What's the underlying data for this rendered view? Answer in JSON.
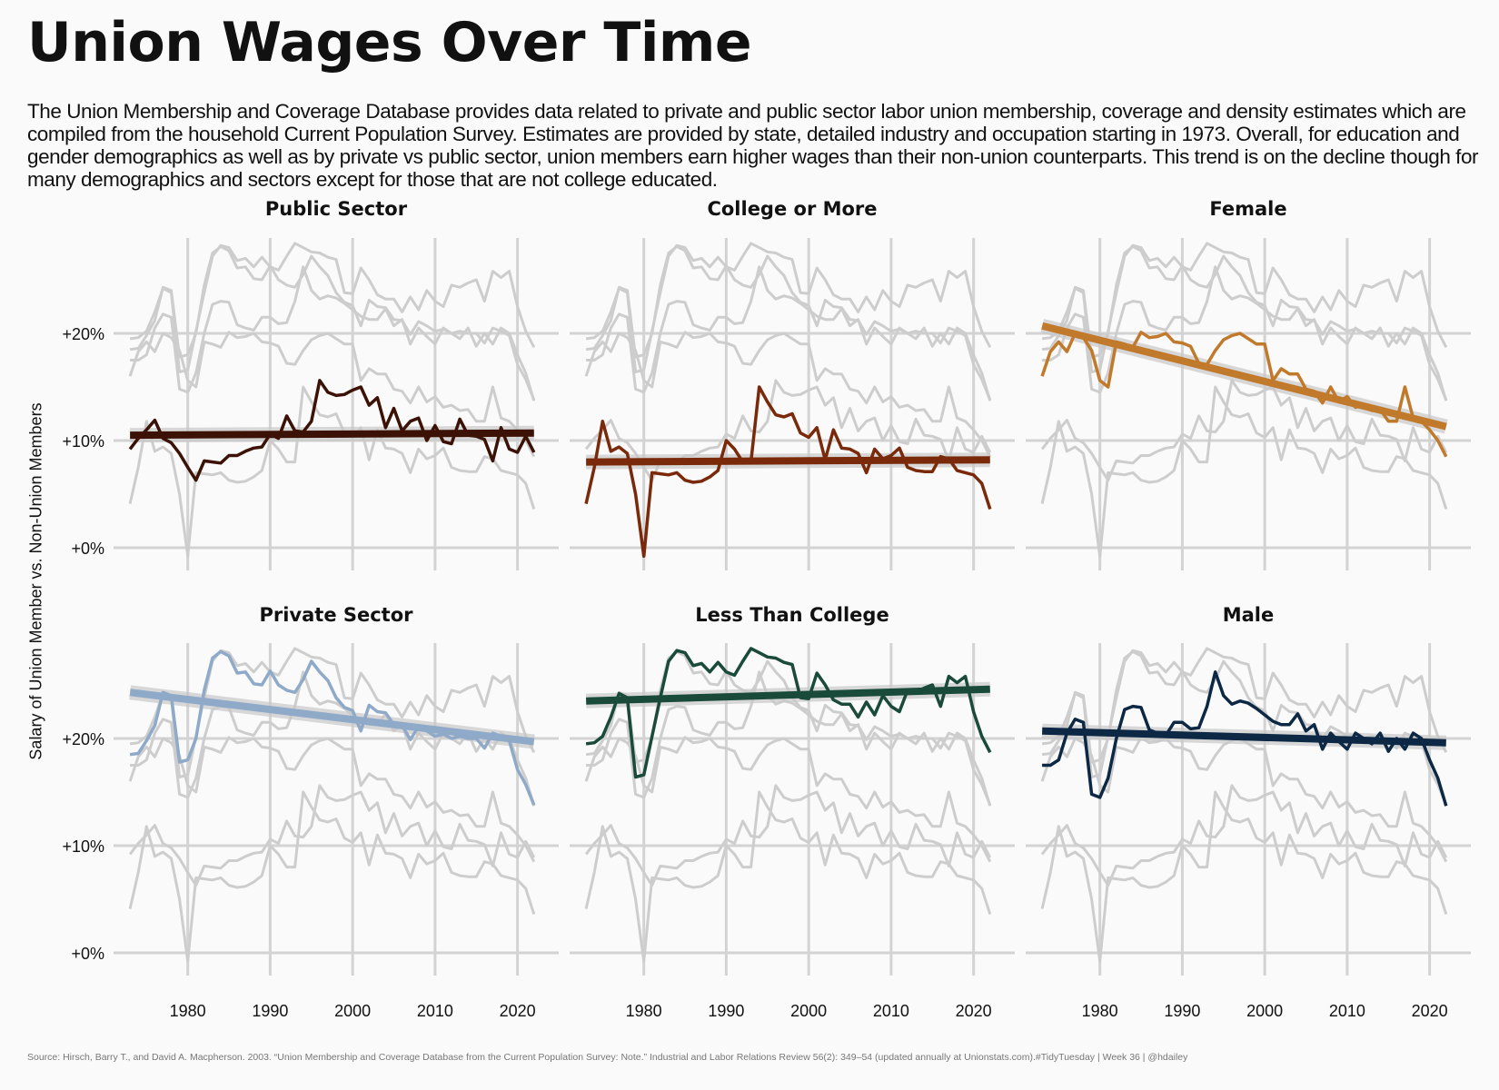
{
  "title": "Union Wages Over Time",
  "subtitle": "The Union Membership and Coverage Database provides data related to private and public sector labor union membership, coverage and density estimates which are compiled from the household Current Population Survey. Estimates are provided by state, detailed industry and occupation starting in 1973. Overall, for education and gender demographics as well as by private vs public sector, union members earn higher wages than their non-union counterparts. This trend is on the decline though for many demographics and sectors except for those that are not college educated.",
  "caption": "Source: Hirsch, Barry T., and David A. Macpherson. 2003. “Union Membership and Coverage Database from the Current Population Survey: Note.” Industrial and Labor Relations Review 56(2): 349–54 (updated annually at Unionstats.com).#TidyTuesday | Week 36 | @hdailey",
  "chart_data": {
    "type": "line",
    "ylabel": "Salary of Union Member vs. Non-Union Members",
    "xlabel": "",
    "x_range": [
      1973,
      2022
    ],
    "xlim": [
      1971,
      2025
    ],
    "ylim": [
      -0.02,
      0.29
    ],
    "x_ticks": [
      1980,
      1990,
      2000,
      2010,
      2020
    ],
    "x_tick_labels": [
      "1980",
      "1990",
      "2000",
      "2010",
      "2020"
    ],
    "y_ticks": [
      0,
      0.1,
      0.2
    ],
    "y_tick_labels": [
      "+0%",
      "+10%",
      "+20%"
    ],
    "grid": true,
    "facets": [
      {
        "name": "Public Sector",
        "color": "#3b1205",
        "trend": [
          0.105,
          0.107
        ],
        "values": [
          0.092,
          0.102,
          0.11,
          0.119,
          0.102,
          0.098,
          0.088,
          0.075,
          0.063,
          0.081,
          0.08,
          0.079,
          0.086,
          0.086,
          0.09,
          0.093,
          0.094,
          0.106,
          0.102,
          0.123,
          0.109,
          0.108,
          0.118,
          0.156,
          0.145,
          0.142,
          0.143,
          0.147,
          0.15,
          0.133,
          0.14,
          0.112,
          0.13,
          0.109,
          0.118,
          0.121,
          0.1,
          0.114,
          0.099,
          0.097,
          0.12,
          0.105,
          0.104,
          0.101,
          0.081,
          0.112,
          0.092,
          0.089,
          0.104,
          0.089,
          0.06,
          0.08
        ]
      },
      {
        "name": "College or More",
        "color": "#7a2a0a",
        "trend": [
          0.08,
          0.082
        ],
        "values": [
          0.041,
          0.075,
          0.118,
          0.09,
          0.094,
          0.088,
          0.05,
          -0.008,
          0.07,
          0.069,
          0.068,
          0.07,
          0.063,
          0.061,
          0.062,
          0.066,
          0.072,
          0.1,
          0.092,
          0.08,
          0.08,
          0.15,
          0.136,
          0.124,
          0.122,
          0.125,
          0.107,
          0.103,
          0.112,
          0.082,
          0.11,
          0.093,
          0.092,
          0.088,
          0.07,
          0.092,
          0.083,
          0.086,
          0.093,
          0.075,
          0.072,
          0.071,
          0.071,
          0.085,
          0.083,
          0.072,
          0.07,
          0.068,
          0.06,
          0.036,
          0.052
        ]
      },
      {
        "name": "Female",
        "color": "#c17a2c",
        "trend": [
          0.207,
          0.113
        ],
        "values": [
          0.16,
          0.183,
          0.192,
          0.183,
          0.2,
          0.196,
          0.184,
          0.156,
          0.15,
          0.192,
          0.19,
          0.187,
          0.201,
          0.196,
          0.197,
          0.2,
          0.192,
          0.191,
          0.188,
          0.172,
          0.171,
          0.184,
          0.194,
          0.198,
          0.2,
          0.195,
          0.19,
          0.19,
          0.156,
          0.167,
          0.162,
          0.162,
          0.148,
          0.146,
          0.135,
          0.15,
          0.136,
          0.141,
          0.131,
          0.133,
          0.128,
          0.129,
          0.118,
          0.118,
          0.15,
          0.121,
          0.118,
          0.11,
          0.1,
          0.085,
          0.065,
          0.08
        ]
      },
      {
        "name": "Private Sector",
        "color": "#8faac8",
        "trend": [
          0.243,
          0.197
        ],
        "values": [
          0.185,
          0.186,
          0.198,
          0.212,
          0.243,
          0.24,
          0.178,
          0.18,
          0.2,
          0.245,
          0.275,
          0.281,
          0.277,
          0.261,
          0.262,
          0.251,
          0.25,
          0.263,
          0.25,
          0.245,
          0.243,
          0.255,
          0.272,
          0.262,
          0.254,
          0.238,
          0.229,
          0.226,
          0.207,
          0.231,
          0.225,
          0.224,
          0.213,
          0.212,
          0.199,
          0.211,
          0.207,
          0.202,
          0.204,
          0.2,
          0.202,
          0.2,
          0.2,
          0.191,
          0.205,
          0.202,
          0.198,
          0.171,
          0.157,
          0.138,
          0.148
        ]
      },
      {
        "name": "Less Than College",
        "color": "#1a4a3a",
        "trend": [
          0.235,
          0.246
        ],
        "values": [
          0.195,
          0.196,
          0.202,
          0.22,
          0.242,
          0.238,
          0.164,
          0.166,
          0.202,
          0.238,
          0.272,
          0.282,
          0.28,
          0.268,
          0.27,
          0.262,
          0.271,
          0.262,
          0.259,
          0.272,
          0.284,
          0.28,
          0.276,
          0.275,
          0.271,
          0.269,
          0.238,
          0.237,
          0.261,
          0.25,
          0.236,
          0.232,
          0.232,
          0.22,
          0.234,
          0.222,
          0.24,
          0.23,
          0.225,
          0.245,
          0.243,
          0.247,
          0.25,
          0.23,
          0.258,
          0.252,
          0.258,
          0.225,
          0.202,
          0.187,
          0.214
        ]
      },
      {
        "name": "Male",
        "color": "#0d2844",
        "trend": [
          0.207,
          0.196
        ],
        "values": [
          0.175,
          0.175,
          0.18,
          0.205,
          0.218,
          0.215,
          0.148,
          0.145,
          0.163,
          0.2,
          0.227,
          0.23,
          0.229,
          0.208,
          0.205,
          0.203,
          0.215,
          0.215,
          0.209,
          0.21,
          0.23,
          0.262,
          0.24,
          0.232,
          0.235,
          0.233,
          0.228,
          0.222,
          0.216,
          0.213,
          0.213,
          0.223,
          0.207,
          0.213,
          0.19,
          0.205,
          0.197,
          0.19,
          0.205,
          0.2,
          0.195,
          0.205,
          0.188,
          0.2,
          0.19,
          0.205,
          0.2,
          0.18,
          0.163,
          0.137,
          0.158
        ]
      }
    ]
  }
}
